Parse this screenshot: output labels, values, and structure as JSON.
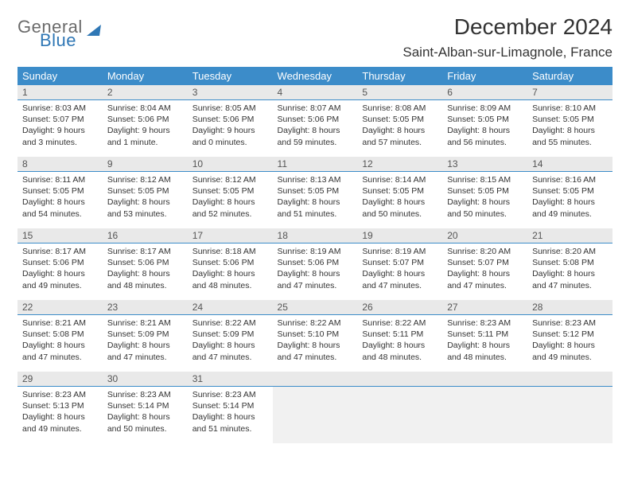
{
  "brand": {
    "word1": "General",
    "word2": "Blue"
  },
  "title": "December 2024",
  "location": "Saint-Alban-sur-Limagnole, France",
  "colors": {
    "header_bg": "#3c8cc9",
    "header_text": "#ffffff",
    "daynum_bg": "#e9e9e9",
    "divider": "#3c8cc9",
    "empty_bg": "#f1f1f1",
    "logo_blue": "#2f77b5",
    "logo_gray": "#6b6b6b"
  },
  "weekdays": [
    "Sunday",
    "Monday",
    "Tuesday",
    "Wednesday",
    "Thursday",
    "Friday",
    "Saturday"
  ],
  "weeks": [
    [
      {
        "n": "1",
        "sunrise": "8:03 AM",
        "sunset": "5:07 PM",
        "daylight": "9 hours and 3 minutes."
      },
      {
        "n": "2",
        "sunrise": "8:04 AM",
        "sunset": "5:06 PM",
        "daylight": "9 hours and 1 minute."
      },
      {
        "n": "3",
        "sunrise": "8:05 AM",
        "sunset": "5:06 PM",
        "daylight": "9 hours and 0 minutes."
      },
      {
        "n": "4",
        "sunrise": "8:07 AM",
        "sunset": "5:06 PM",
        "daylight": "8 hours and 59 minutes."
      },
      {
        "n": "5",
        "sunrise": "8:08 AM",
        "sunset": "5:05 PM",
        "daylight": "8 hours and 57 minutes."
      },
      {
        "n": "6",
        "sunrise": "8:09 AM",
        "sunset": "5:05 PM",
        "daylight": "8 hours and 56 minutes."
      },
      {
        "n": "7",
        "sunrise": "8:10 AM",
        "sunset": "5:05 PM",
        "daylight": "8 hours and 55 minutes."
      }
    ],
    [
      {
        "n": "8",
        "sunrise": "8:11 AM",
        "sunset": "5:05 PM",
        "daylight": "8 hours and 54 minutes."
      },
      {
        "n": "9",
        "sunrise": "8:12 AM",
        "sunset": "5:05 PM",
        "daylight": "8 hours and 53 minutes."
      },
      {
        "n": "10",
        "sunrise": "8:12 AM",
        "sunset": "5:05 PM",
        "daylight": "8 hours and 52 minutes."
      },
      {
        "n": "11",
        "sunrise": "8:13 AM",
        "sunset": "5:05 PM",
        "daylight": "8 hours and 51 minutes."
      },
      {
        "n": "12",
        "sunrise": "8:14 AM",
        "sunset": "5:05 PM",
        "daylight": "8 hours and 50 minutes."
      },
      {
        "n": "13",
        "sunrise": "8:15 AM",
        "sunset": "5:05 PM",
        "daylight": "8 hours and 50 minutes."
      },
      {
        "n": "14",
        "sunrise": "8:16 AM",
        "sunset": "5:05 PM",
        "daylight": "8 hours and 49 minutes."
      }
    ],
    [
      {
        "n": "15",
        "sunrise": "8:17 AM",
        "sunset": "5:06 PM",
        "daylight": "8 hours and 49 minutes."
      },
      {
        "n": "16",
        "sunrise": "8:17 AM",
        "sunset": "5:06 PM",
        "daylight": "8 hours and 48 minutes."
      },
      {
        "n": "17",
        "sunrise": "8:18 AM",
        "sunset": "5:06 PM",
        "daylight": "8 hours and 48 minutes."
      },
      {
        "n": "18",
        "sunrise": "8:19 AM",
        "sunset": "5:06 PM",
        "daylight": "8 hours and 47 minutes."
      },
      {
        "n": "19",
        "sunrise": "8:19 AM",
        "sunset": "5:07 PM",
        "daylight": "8 hours and 47 minutes."
      },
      {
        "n": "20",
        "sunrise": "8:20 AM",
        "sunset": "5:07 PM",
        "daylight": "8 hours and 47 minutes."
      },
      {
        "n": "21",
        "sunrise": "8:20 AM",
        "sunset": "5:08 PM",
        "daylight": "8 hours and 47 minutes."
      }
    ],
    [
      {
        "n": "22",
        "sunrise": "8:21 AM",
        "sunset": "5:08 PM",
        "daylight": "8 hours and 47 minutes."
      },
      {
        "n": "23",
        "sunrise": "8:21 AM",
        "sunset": "5:09 PM",
        "daylight": "8 hours and 47 minutes."
      },
      {
        "n": "24",
        "sunrise": "8:22 AM",
        "sunset": "5:09 PM",
        "daylight": "8 hours and 47 minutes."
      },
      {
        "n": "25",
        "sunrise": "8:22 AM",
        "sunset": "5:10 PM",
        "daylight": "8 hours and 47 minutes."
      },
      {
        "n": "26",
        "sunrise": "8:22 AM",
        "sunset": "5:11 PM",
        "daylight": "8 hours and 48 minutes."
      },
      {
        "n": "27",
        "sunrise": "8:23 AM",
        "sunset": "5:11 PM",
        "daylight": "8 hours and 48 minutes."
      },
      {
        "n": "28",
        "sunrise": "8:23 AM",
        "sunset": "5:12 PM",
        "daylight": "8 hours and 49 minutes."
      }
    ],
    [
      {
        "n": "29",
        "sunrise": "8:23 AM",
        "sunset": "5:13 PM",
        "daylight": "8 hours and 49 minutes."
      },
      {
        "n": "30",
        "sunrise": "8:23 AM",
        "sunset": "5:14 PM",
        "daylight": "8 hours and 50 minutes."
      },
      {
        "n": "31",
        "sunrise": "8:23 AM",
        "sunset": "5:14 PM",
        "daylight": "8 hours and 51 minutes."
      },
      null,
      null,
      null,
      null
    ]
  ],
  "labels": {
    "sunrise": "Sunrise: ",
    "sunset": "Sunset: ",
    "daylight": "Daylight: "
  }
}
